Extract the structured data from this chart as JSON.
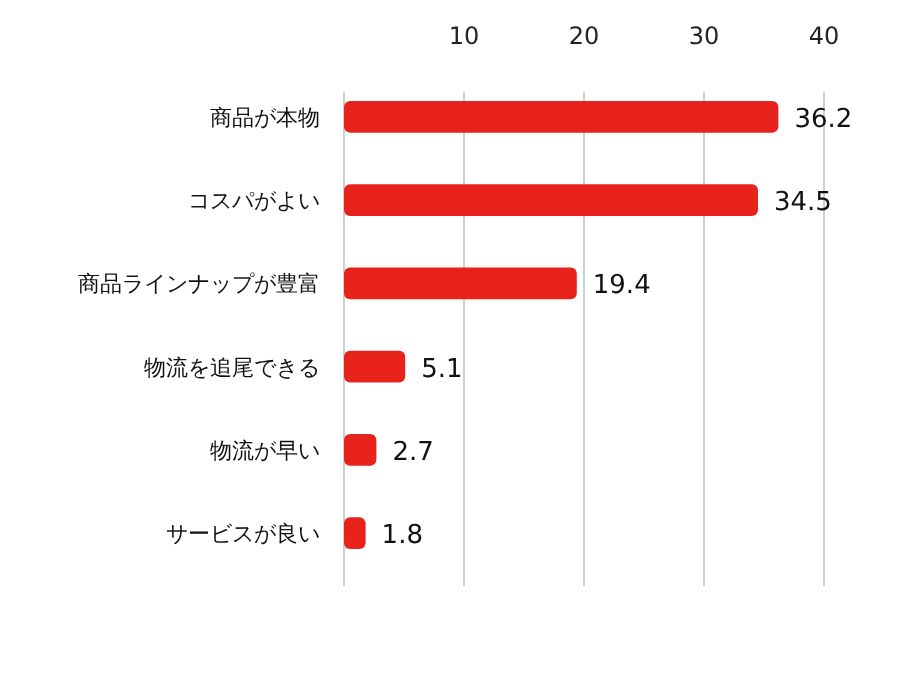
{
  "chart_data": {
    "type": "bar",
    "orientation": "horizontal",
    "categories": [
      "商品が本物",
      "コスパがよい",
      "商品ラインナップが豊富",
      "物流を追尾できる",
      "物流が早い",
      "サービスが良い"
    ],
    "values": [
      36.2,
      34.5,
      19.4,
      5.1,
      2.7,
      1.8
    ],
    "color": "#e8231c",
    "xlim": [
      0,
      40
    ],
    "xticks": [
      {
        "value": 0,
        "label": null
      },
      10,
      20,
      30,
      40
    ],
    "grid": "x",
    "data_labels": true
  }
}
